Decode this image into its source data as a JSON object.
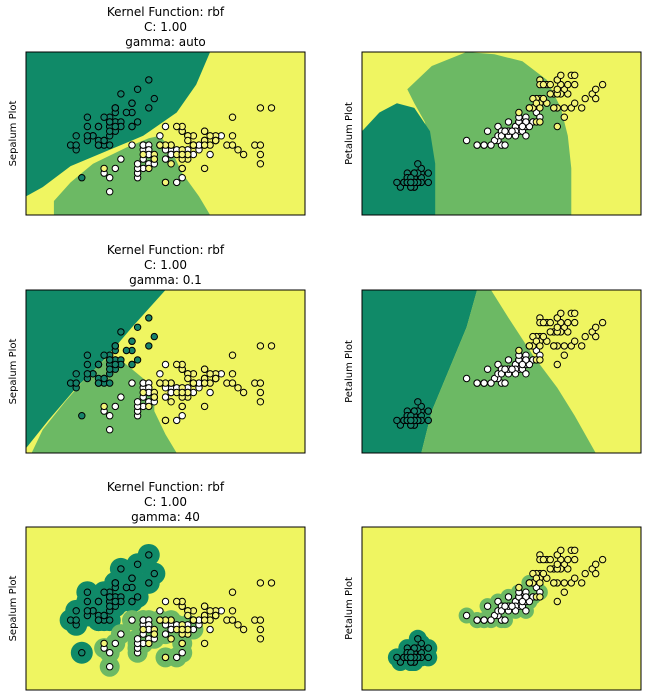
{
  "colors": {
    "class0": "#108a68",
    "class1": "#6cb964",
    "class2": "#eff561",
    "point_edge": "#000000",
    "point_fill_setosa": "#16826a",
    "point_fill_versicolor": "#ffffff",
    "point_fill_virginica": "#f5f57a"
  },
  "chart_data": [
    {
      "type": "scatter",
      "subtype": "svm-decision-regions",
      "title_lines": [
        "Kernel Function: rbf",
        "C: 1.00",
        "gamma: auto"
      ],
      "ylabel": "Sepalum Plot",
      "xlabel": "",
      "ticks": "none",
      "x_range": [
        3.5,
        8.5
      ],
      "y_range": [
        1.5,
        5.0
      ],
      "feature_set": "sepal",
      "kernel": "rbf",
      "C": 1.0,
      "gamma": "auto"
    },
    {
      "type": "scatter",
      "subtype": "svm-decision-regions",
      "title_lines": [],
      "ylabel": "Petalum Plot",
      "xlabel": "",
      "ticks": "none",
      "x_range": [
        0.0,
        8.0
      ],
      "y_range": [
        -0.5,
        3.0
      ],
      "feature_set": "petal",
      "kernel": "rbf",
      "C": 1.0,
      "gamma": "auto"
    },
    {
      "type": "scatter",
      "subtype": "svm-decision-regions",
      "title_lines": [
        "Kernel Function: rbf",
        "C: 1.00",
        "gamma: 0.1"
      ],
      "ylabel": "Sepalum Plot",
      "xlabel": "",
      "ticks": "none",
      "x_range": [
        3.5,
        8.5
      ],
      "y_range": [
        1.5,
        5.0
      ],
      "feature_set": "sepal",
      "kernel": "rbf",
      "C": 1.0,
      "gamma": 0.1
    },
    {
      "type": "scatter",
      "subtype": "svm-decision-regions",
      "title_lines": [],
      "ylabel": "Petalum Plot",
      "xlabel": "",
      "ticks": "none",
      "x_range": [
        0.0,
        8.0
      ],
      "y_range": [
        -0.5,
        3.0
      ],
      "feature_set": "petal",
      "kernel": "rbf",
      "C": 1.0,
      "gamma": 0.1
    },
    {
      "type": "scatter",
      "subtype": "svm-decision-regions",
      "title_lines": [
        "Kernel Function: rbf",
        "C: 1.00",
        "gamma: 40"
      ],
      "ylabel": "Sepalum Plot",
      "xlabel": "",
      "ticks": "none",
      "x_range": [
        3.5,
        8.5
      ],
      "y_range": [
        1.5,
        5.0
      ],
      "feature_set": "sepal",
      "kernel": "rbf",
      "C": 1.0,
      "gamma": 40
    },
    {
      "type": "scatter",
      "subtype": "svm-decision-regions",
      "title_lines": [],
      "ylabel": "Petalum Plot",
      "xlabel": "",
      "ticks": "none",
      "x_range": [
        0.0,
        8.0
      ],
      "y_range": [
        -0.5,
        3.0
      ],
      "feature_set": "petal",
      "kernel": "rbf",
      "C": 1.0,
      "gamma": 40
    }
  ],
  "scatter_points": {
    "sepal": {
      "setosa": [
        [
          5.1,
          3.5
        ],
        [
          4.9,
          3.0
        ],
        [
          4.7,
          3.2
        ],
        [
          4.6,
          3.1
        ],
        [
          5.0,
          3.6
        ],
        [
          5.4,
          3.9
        ],
        [
          4.6,
          3.4
        ],
        [
          5.0,
          3.4
        ],
        [
          4.4,
          2.9
        ],
        [
          4.9,
          3.1
        ],
        [
          5.4,
          3.7
        ],
        [
          4.8,
          3.4
        ],
        [
          4.8,
          3.0
        ],
        [
          4.3,
          3.0
        ],
        [
          5.8,
          4.0
        ],
        [
          5.7,
          4.4
        ],
        [
          5.4,
          3.9
        ],
        [
          5.1,
          3.5
        ],
        [
          5.7,
          3.8
        ],
        [
          5.1,
          3.8
        ],
        [
          5.4,
          3.4
        ],
        [
          5.1,
          3.7
        ],
        [
          4.6,
          3.6
        ],
        [
          5.1,
          3.3
        ],
        [
          4.8,
          3.4
        ],
        [
          5.0,
          3.0
        ],
        [
          5.0,
          3.4
        ],
        [
          5.2,
          3.5
        ],
        [
          5.2,
          3.4
        ],
        [
          4.7,
          3.2
        ],
        [
          4.8,
          3.1
        ],
        [
          5.4,
          3.4
        ],
        [
          5.2,
          4.1
        ],
        [
          5.5,
          4.2
        ],
        [
          4.9,
          3.1
        ],
        [
          5.0,
          3.2
        ],
        [
          5.5,
          3.5
        ],
        [
          4.9,
          3.6
        ],
        [
          4.4,
          3.0
        ],
        [
          5.1,
          3.4
        ],
        [
          5.0,
          3.5
        ],
        [
          4.5,
          2.3
        ],
        [
          4.4,
          3.2
        ],
        [
          5.0,
          3.5
        ],
        [
          5.1,
          3.8
        ],
        [
          4.8,
          3.0
        ],
        [
          5.1,
          3.8
        ],
        [
          4.6,
          3.2
        ],
        [
          5.3,
          3.7
        ],
        [
          5.0,
          3.3
        ]
      ],
      "versicolor": [
        [
          7.0,
          3.2
        ],
        [
          6.4,
          3.2
        ],
        [
          6.9,
          3.1
        ],
        [
          5.5,
          2.3
        ],
        [
          6.5,
          2.8
        ],
        [
          5.7,
          2.8
        ],
        [
          6.3,
          3.3
        ],
        [
          4.9,
          2.4
        ],
        [
          6.6,
          2.9
        ],
        [
          5.2,
          2.7
        ],
        [
          5.0,
          2.0
        ],
        [
          5.9,
          3.0
        ],
        [
          6.0,
          2.2
        ],
        [
          6.1,
          2.9
        ],
        [
          5.6,
          2.9
        ],
        [
          6.7,
          3.1
        ],
        [
          5.6,
          3.0
        ],
        [
          5.8,
          2.7
        ],
        [
          6.2,
          2.2
        ],
        [
          5.6,
          2.5
        ],
        [
          5.9,
          3.2
        ],
        [
          6.1,
          2.8
        ],
        [
          6.3,
          2.5
        ],
        [
          6.1,
          2.8
        ],
        [
          6.4,
          2.9
        ],
        [
          6.6,
          3.0
        ],
        [
          6.8,
          2.8
        ],
        [
          6.7,
          3.0
        ],
        [
          6.0,
          2.9
        ],
        [
          5.7,
          2.6
        ],
        [
          5.5,
          2.4
        ],
        [
          5.5,
          2.4
        ],
        [
          5.8,
          2.7
        ],
        [
          6.0,
          2.7
        ],
        [
          5.4,
          3.0
        ],
        [
          6.0,
          3.4
        ],
        [
          6.7,
          3.1
        ],
        [
          6.3,
          2.3
        ],
        [
          5.6,
          3.0
        ],
        [
          5.5,
          2.5
        ],
        [
          5.5,
          2.6
        ],
        [
          6.1,
          3.0
        ],
        [
          5.8,
          2.6
        ],
        [
          5.0,
          2.3
        ],
        [
          5.6,
          2.7
        ],
        [
          5.7,
          3.0
        ],
        [
          5.7,
          2.9
        ],
        [
          6.2,
          2.9
        ],
        [
          5.1,
          2.5
        ],
        [
          5.7,
          2.8
        ]
      ],
      "virginica": [
        [
          6.3,
          3.3
        ],
        [
          5.8,
          2.7
        ],
        [
          7.1,
          3.0
        ],
        [
          6.3,
          2.9
        ],
        [
          6.5,
          3.0
        ],
        [
          7.6,
          3.0
        ],
        [
          4.9,
          2.5
        ],
        [
          7.3,
          2.9
        ],
        [
          6.7,
          2.5
        ],
        [
          7.2,
          3.6
        ],
        [
          6.5,
          3.2
        ],
        [
          6.4,
          2.7
        ],
        [
          6.8,
          3.0
        ],
        [
          5.7,
          2.5
        ],
        [
          5.8,
          2.8
        ],
        [
          6.4,
          3.2
        ],
        [
          6.5,
          3.0
        ],
        [
          7.7,
          3.8
        ],
        [
          7.7,
          2.6
        ],
        [
          6.0,
          2.2
        ],
        [
          6.9,
          3.2
        ],
        [
          5.6,
          2.8
        ],
        [
          7.7,
          2.8
        ],
        [
          6.3,
          2.7
        ],
        [
          6.7,
          3.3
        ],
        [
          7.2,
          3.2
        ],
        [
          6.2,
          2.8
        ],
        [
          6.1,
          3.0
        ],
        [
          6.4,
          2.8
        ],
        [
          7.2,
          3.0
        ],
        [
          7.4,
          2.8
        ],
        [
          7.9,
          3.8
        ],
        [
          6.4,
          2.8
        ],
        [
          6.3,
          2.8
        ],
        [
          6.1,
          2.6
        ],
        [
          7.7,
          3.0
        ],
        [
          6.3,
          3.4
        ],
        [
          6.4,
          3.1
        ],
        [
          6.0,
          3.0
        ],
        [
          6.9,
          3.1
        ],
        [
          6.7,
          3.1
        ],
        [
          6.9,
          3.1
        ],
        [
          5.8,
          2.7
        ],
        [
          6.8,
          3.2
        ],
        [
          6.7,
          3.3
        ],
        [
          6.7,
          3.0
        ],
        [
          6.3,
          2.5
        ],
        [
          6.5,
          3.0
        ],
        [
          6.2,
          3.4
        ],
        [
          5.9,
          3.0
        ]
      ]
    },
    "petal": {
      "setosa": [
        [
          1.4,
          0.2
        ],
        [
          1.4,
          0.2
        ],
        [
          1.3,
          0.2
        ],
        [
          1.5,
          0.2
        ],
        [
          1.4,
          0.2
        ],
        [
          1.7,
          0.4
        ],
        [
          1.4,
          0.3
        ],
        [
          1.5,
          0.2
        ],
        [
          1.4,
          0.2
        ],
        [
          1.5,
          0.1
        ],
        [
          1.5,
          0.2
        ],
        [
          1.6,
          0.2
        ],
        [
          1.4,
          0.1
        ],
        [
          1.1,
          0.1
        ],
        [
          1.2,
          0.2
        ],
        [
          1.5,
          0.4
        ],
        [
          1.3,
          0.4
        ],
        [
          1.4,
          0.3
        ],
        [
          1.7,
          0.3
        ],
        [
          1.5,
          0.3
        ],
        [
          1.7,
          0.2
        ],
        [
          1.5,
          0.4
        ],
        [
          1.0,
          0.2
        ],
        [
          1.7,
          0.5
        ],
        [
          1.9,
          0.2
        ],
        [
          1.6,
          0.2
        ],
        [
          1.6,
          0.4
        ],
        [
          1.5,
          0.2
        ],
        [
          1.4,
          0.2
        ],
        [
          1.6,
          0.2
        ],
        [
          1.6,
          0.2
        ],
        [
          1.5,
          0.4
        ],
        [
          1.5,
          0.1
        ],
        [
          1.4,
          0.2
        ],
        [
          1.5,
          0.2
        ],
        [
          1.2,
          0.2
        ],
        [
          1.3,
          0.2
        ],
        [
          1.4,
          0.1
        ],
        [
          1.3,
          0.2
        ],
        [
          1.5,
          0.2
        ],
        [
          1.3,
          0.3
        ],
        [
          1.3,
          0.3
        ],
        [
          1.3,
          0.2
        ],
        [
          1.6,
          0.6
        ],
        [
          1.9,
          0.4
        ],
        [
          1.4,
          0.3
        ],
        [
          1.6,
          0.2
        ],
        [
          1.4,
          0.2
        ],
        [
          1.5,
          0.2
        ],
        [
          1.4,
          0.2
        ]
      ],
      "versicolor": [
        [
          4.7,
          1.4
        ],
        [
          4.5,
          1.5
        ],
        [
          4.9,
          1.5
        ],
        [
          4.0,
          1.3
        ],
        [
          4.6,
          1.5
        ],
        [
          4.5,
          1.3
        ],
        [
          4.7,
          1.6
        ],
        [
          3.3,
          1.0
        ],
        [
          4.6,
          1.3
        ],
        [
          3.9,
          1.4
        ],
        [
          3.5,
          1.0
        ],
        [
          4.2,
          1.5
        ],
        [
          4.0,
          1.0
        ],
        [
          4.7,
          1.4
        ],
        [
          3.6,
          1.3
        ],
        [
          4.4,
          1.4
        ],
        [
          4.5,
          1.5
        ],
        [
          4.1,
          1.0
        ],
        [
          4.5,
          1.5
        ],
        [
          3.9,
          1.1
        ],
        [
          4.8,
          1.8
        ],
        [
          4.0,
          1.3
        ],
        [
          4.9,
          1.5
        ],
        [
          4.7,
          1.2
        ],
        [
          4.3,
          1.3
        ],
        [
          4.4,
          1.4
        ],
        [
          4.8,
          1.4
        ],
        [
          5.0,
          1.7
        ],
        [
          4.5,
          1.5
        ],
        [
          3.5,
          1.0
        ],
        [
          3.8,
          1.1
        ],
        [
          3.7,
          1.0
        ],
        [
          3.9,
          1.2
        ],
        [
          5.1,
          1.6
        ],
        [
          4.5,
          1.5
        ],
        [
          4.5,
          1.6
        ],
        [
          4.7,
          1.5
        ],
        [
          4.4,
          1.3
        ],
        [
          4.1,
          1.3
        ],
        [
          4.0,
          1.3
        ],
        [
          4.4,
          1.2
        ],
        [
          4.6,
          1.4
        ],
        [
          4.0,
          1.2
        ],
        [
          3.3,
          1.0
        ],
        [
          4.2,
          1.3
        ],
        [
          4.2,
          1.2
        ],
        [
          4.2,
          1.3
        ],
        [
          4.3,
          1.3
        ],
        [
          3.0,
          1.1
        ],
        [
          4.1,
          1.3
        ]
      ],
      "virginica": [
        [
          6.0,
          2.5
        ],
        [
          5.1,
          1.9
        ],
        [
          5.9,
          2.1
        ],
        [
          5.6,
          1.8
        ],
        [
          5.8,
          2.2
        ],
        [
          6.6,
          2.1
        ],
        [
          4.5,
          1.7
        ],
        [
          6.3,
          1.8
        ],
        [
          5.8,
          1.8
        ],
        [
          6.1,
          2.5
        ],
        [
          5.1,
          2.0
        ],
        [
          5.3,
          1.9
        ],
        [
          5.5,
          2.1
        ],
        [
          5.0,
          2.0
        ],
        [
          5.1,
          2.4
        ],
        [
          5.3,
          2.3
        ],
        [
          5.5,
          1.8
        ],
        [
          6.7,
          2.2
        ],
        [
          6.9,
          2.3
        ],
        [
          5.0,
          1.5
        ],
        [
          5.7,
          2.3
        ],
        [
          4.9,
          2.0
        ],
        [
          6.7,
          2.0
        ],
        [
          4.9,
          1.8
        ],
        [
          5.7,
          2.1
        ],
        [
          6.0,
          1.8
        ],
        [
          4.8,
          1.8
        ],
        [
          4.9,
          1.8
        ],
        [
          5.6,
          2.1
        ],
        [
          5.8,
          1.6
        ],
        [
          6.1,
          1.9
        ],
        [
          6.4,
          2.0
        ],
        [
          5.6,
          2.2
        ],
        [
          5.1,
          1.5
        ],
        [
          5.6,
          1.4
        ],
        [
          6.1,
          2.3
        ],
        [
          5.6,
          2.4
        ],
        [
          5.5,
          1.8
        ],
        [
          4.8,
          1.8
        ],
        [
          5.4,
          2.1
        ],
        [
          5.6,
          2.4
        ],
        [
          5.1,
          2.3
        ],
        [
          5.1,
          1.9
        ],
        [
          5.9,
          2.3
        ],
        [
          5.7,
          2.5
        ],
        [
          5.2,
          2.3
        ],
        [
          5.0,
          1.9
        ],
        [
          5.2,
          2.0
        ],
        [
          5.4,
          2.3
        ],
        [
          5.1,
          1.8
        ]
      ]
    }
  }
}
